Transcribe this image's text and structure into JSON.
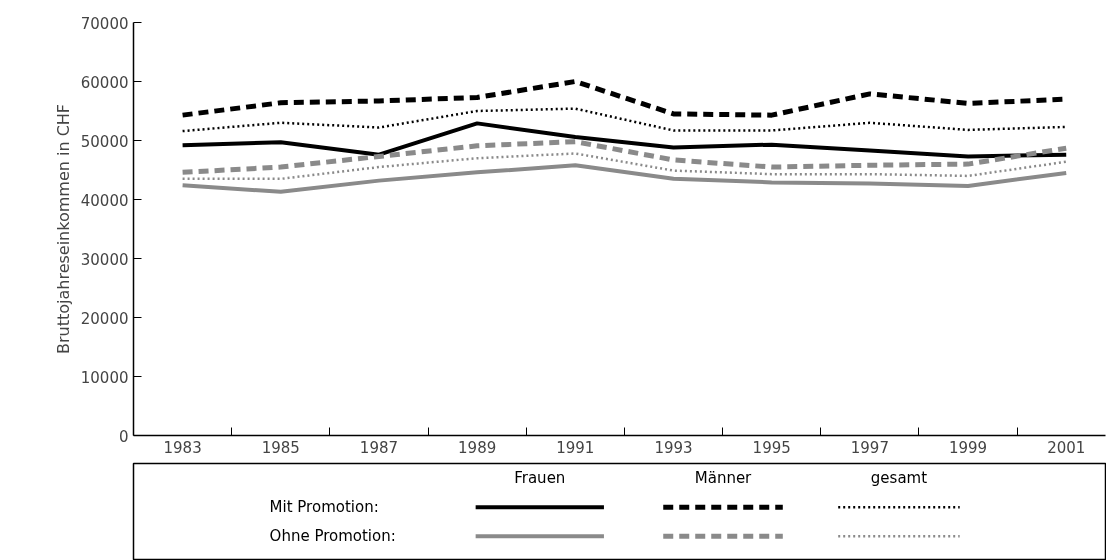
{
  "chart_data": {
    "type": "line",
    "ylabel": "Bruttojahreseinkommen in CHF",
    "categories": [
      "1983",
      "1985",
      "1987",
      "1989",
      "1991",
      "1993",
      "1995",
      "1997",
      "1999",
      "2001"
    ],
    "ylim": [
      0,
      70000
    ],
    "yticks": [
      0,
      10000,
      20000,
      30000,
      40000,
      50000,
      60000,
      70000
    ],
    "annotations": [
      "Frauen",
      "Männer",
      "gesamt",
      "Mit Promotion:",
      "Ohne Promotion:"
    ],
    "series": [
      {
        "color": "#000000",
        "line_style": "solid",
        "values": [
          49200,
          49700,
          47600,
          52900,
          50600,
          48800,
          49300,
          48300,
          47300,
          47600
        ]
      },
      {
        "color": "#000000",
        "line_style": "dashed",
        "values": [
          54300,
          56400,
          56700,
          57300,
          60000,
          54500,
          54300,
          57900,
          56300,
          57000
        ]
      },
      {
        "color": "#000000",
        "line_style": "dotted",
        "values": [
          51600,
          53000,
          52200,
          55000,
          55400,
          51700,
          51700,
          53000,
          51800,
          52300
        ]
      },
      {
        "color": "#8a8a8a",
        "line_style": "solid",
        "values": [
          42400,
          41300,
          43200,
          44600,
          45800,
          43500,
          42900,
          42700,
          42300,
          44500
        ]
      },
      {
        "color": "#8a8a8a",
        "line_style": "dashed",
        "values": [
          44600,
          45500,
          47300,
          49100,
          49800,
          46700,
          45500,
          45800,
          46000,
          48700
        ]
      },
      {
        "color": "#8a8a8a",
        "line_style": "dotted",
        "values": [
          43500,
          43500,
          45500,
          47000,
          47800,
          44900,
          44300,
          44300,
          44000,
          46400
        ]
      }
    ]
  }
}
